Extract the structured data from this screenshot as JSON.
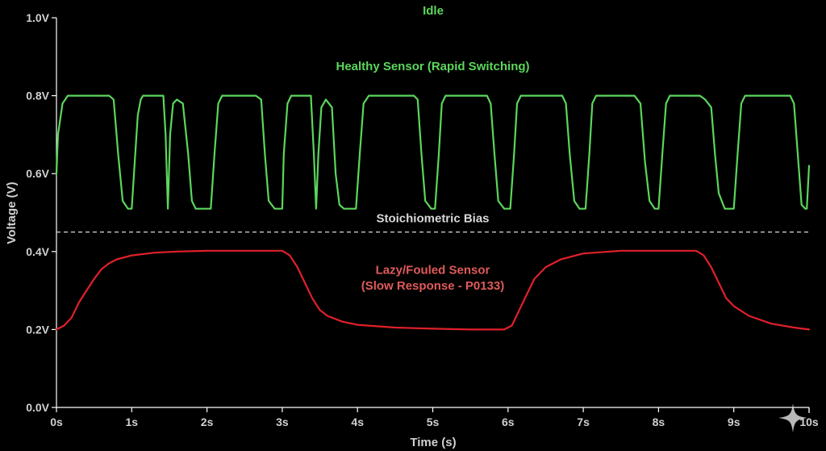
{
  "chart_data": {
    "type": "line",
    "title": "Idle",
    "xlabel": "Time (s)",
    "ylabel": "Voltage (V)",
    "xlim": [
      0,
      10
    ],
    "ylim": [
      0.0,
      1.0
    ],
    "x_ticks": [
      "0s",
      "1s",
      "2s",
      "3s",
      "4s",
      "5s",
      "6s",
      "7s",
      "8s",
      "9s",
      "10s"
    ],
    "y_ticks": [
      "0.0V",
      "0.2V",
      "0.4V",
      "0.6V",
      "0.8V",
      "1.0V"
    ],
    "grid": false,
    "series": [
      {
        "name": "Healthy Sensor (Rapid Switching)",
        "color": "#5cd65c",
        "points": [
          [
            0,
            0.6
          ],
          [
            0.02,
            0.7
          ],
          [
            0.08,
            0.78
          ],
          [
            0.15,
            0.8
          ],
          [
            0.7,
            0.8
          ],
          [
            0.76,
            0.79
          ],
          [
            0.82,
            0.65
          ],
          [
            0.88,
            0.53
          ],
          [
            0.95,
            0.51
          ],
          [
            1.0,
            0.51
          ],
          [
            1.03,
            0.6
          ],
          [
            1.08,
            0.75
          ],
          [
            1.12,
            0.79
          ],
          [
            1.15,
            0.8
          ],
          [
            1.42,
            0.8
          ],
          [
            1.45,
            0.7
          ],
          [
            1.48,
            0.51
          ],
          [
            1.51,
            0.7
          ],
          [
            1.55,
            0.78
          ],
          [
            1.6,
            0.79
          ],
          [
            1.68,
            0.78
          ],
          [
            1.75,
            0.65
          ],
          [
            1.8,
            0.53
          ],
          [
            1.85,
            0.51
          ],
          [
            2.05,
            0.51
          ],
          [
            2.1,
            0.65
          ],
          [
            2.15,
            0.78
          ],
          [
            2.2,
            0.8
          ],
          [
            2.65,
            0.8
          ],
          [
            2.72,
            0.79
          ],
          [
            2.77,
            0.65
          ],
          [
            2.82,
            0.53
          ],
          [
            2.9,
            0.51
          ],
          [
            3.0,
            0.51
          ],
          [
            3.02,
            0.65
          ],
          [
            3.07,
            0.78
          ],
          [
            3.12,
            0.8
          ],
          [
            3.38,
            0.8
          ],
          [
            3.42,
            0.65
          ],
          [
            3.45,
            0.51
          ],
          [
            3.48,
            0.65
          ],
          [
            3.52,
            0.77
          ],
          [
            3.58,
            0.79
          ],
          [
            3.66,
            0.77
          ],
          [
            3.71,
            0.6
          ],
          [
            3.76,
            0.52
          ],
          [
            3.82,
            0.51
          ],
          [
            3.98,
            0.51
          ],
          [
            4.03,
            0.65
          ],
          [
            4.08,
            0.78
          ],
          [
            4.15,
            0.8
          ],
          [
            4.75,
            0.8
          ],
          [
            4.8,
            0.79
          ],
          [
            4.85,
            0.65
          ],
          [
            4.9,
            0.53
          ],
          [
            4.98,
            0.51
          ],
          [
            5.03,
            0.51
          ],
          [
            5.08,
            0.65
          ],
          [
            5.12,
            0.78
          ],
          [
            5.17,
            0.8
          ],
          [
            5.72,
            0.8
          ],
          [
            5.77,
            0.78
          ],
          [
            5.82,
            0.65
          ],
          [
            5.87,
            0.53
          ],
          [
            5.95,
            0.51
          ],
          [
            6.03,
            0.51
          ],
          [
            6.08,
            0.65
          ],
          [
            6.12,
            0.78
          ],
          [
            6.17,
            0.8
          ],
          [
            6.72,
            0.8
          ],
          [
            6.77,
            0.78
          ],
          [
            6.82,
            0.65
          ],
          [
            6.88,
            0.53
          ],
          [
            6.95,
            0.51
          ],
          [
            7.03,
            0.51
          ],
          [
            7.08,
            0.65
          ],
          [
            7.12,
            0.78
          ],
          [
            7.17,
            0.8
          ],
          [
            7.68,
            0.8
          ],
          [
            7.76,
            0.78
          ],
          [
            7.82,
            0.63
          ],
          [
            7.88,
            0.53
          ],
          [
            7.95,
            0.51
          ],
          [
            8.0,
            0.51
          ],
          [
            8.05,
            0.65
          ],
          [
            8.1,
            0.78
          ],
          [
            8.15,
            0.8
          ],
          [
            8.55,
            0.8
          ],
          [
            8.62,
            0.79
          ],
          [
            8.7,
            0.77
          ],
          [
            8.75,
            0.65
          ],
          [
            8.8,
            0.55
          ],
          [
            8.88,
            0.51
          ],
          [
            9.0,
            0.51
          ],
          [
            9.05,
            0.65
          ],
          [
            9.1,
            0.78
          ],
          [
            9.15,
            0.8
          ],
          [
            9.75,
            0.8
          ],
          [
            9.8,
            0.78
          ],
          [
            9.85,
            0.65
          ],
          [
            9.9,
            0.52
          ],
          [
            9.95,
            0.51
          ],
          [
            9.97,
            0.51
          ],
          [
            10.0,
            0.62
          ]
        ]
      },
      {
        "name": "Lazy/Fouled Sensor (Slow Response - P0133)",
        "color": "#e0202a",
        "points": [
          [
            0,
            0.2
          ],
          [
            0.1,
            0.21
          ],
          [
            0.2,
            0.23
          ],
          [
            0.3,
            0.27
          ],
          [
            0.4,
            0.3
          ],
          [
            0.5,
            0.33
          ],
          [
            0.6,
            0.355
          ],
          [
            0.7,
            0.37
          ],
          [
            0.8,
            0.38
          ],
          [
            1.0,
            0.39
          ],
          [
            1.3,
            0.397
          ],
          [
            1.6,
            0.4
          ],
          [
            2.0,
            0.402
          ],
          [
            2.5,
            0.402
          ],
          [
            3.0,
            0.402
          ],
          [
            3.1,
            0.39
          ],
          [
            3.2,
            0.36
          ],
          [
            3.3,
            0.32
          ],
          [
            3.4,
            0.28
          ],
          [
            3.5,
            0.25
          ],
          [
            3.6,
            0.235
          ],
          [
            3.8,
            0.22
          ],
          [
            4.0,
            0.212
          ],
          [
            4.5,
            0.205
          ],
          [
            5.0,
            0.202
          ],
          [
            5.5,
            0.2
          ],
          [
            5.95,
            0.2
          ],
          [
            6.05,
            0.21
          ],
          [
            6.15,
            0.25
          ],
          [
            6.25,
            0.29
          ],
          [
            6.35,
            0.33
          ],
          [
            6.5,
            0.36
          ],
          [
            6.7,
            0.38
          ],
          [
            7.0,
            0.395
          ],
          [
            7.5,
            0.402
          ],
          [
            8.0,
            0.402
          ],
          [
            8.5,
            0.402
          ],
          [
            8.6,
            0.39
          ],
          [
            8.7,
            0.36
          ],
          [
            8.8,
            0.32
          ],
          [
            8.9,
            0.28
          ],
          [
            9.0,
            0.26
          ],
          [
            9.2,
            0.235
          ],
          [
            9.5,
            0.215
          ],
          [
            9.8,
            0.205
          ],
          [
            10.0,
            0.2
          ]
        ]
      }
    ],
    "reference_lines": [
      {
        "label": "Stoichiometric Bias",
        "y": 0.45,
        "color": "#d8d8d8",
        "style": "dashed"
      }
    ],
    "annotations": [
      {
        "text": "Healthy Sensor (Rapid Switching)",
        "x": 5.0,
        "y": 0.865,
        "color": "#5cd65c"
      },
      {
        "text": "Stoichiometric Bias",
        "x": 5.0,
        "y": 0.475,
        "color": "#d8d8d8"
      },
      {
        "text": "Lazy/Fouled Sensor",
        "x": 5.0,
        "y": 0.343,
        "color": "#e05a5a"
      },
      {
        "text": "(Slow Response - P0133)",
        "x": 5.0,
        "y": 0.302,
        "color": "#e05a5a"
      }
    ],
    "title_color": "#5cd65c",
    "watermark_icon": "sparkle-icon"
  }
}
